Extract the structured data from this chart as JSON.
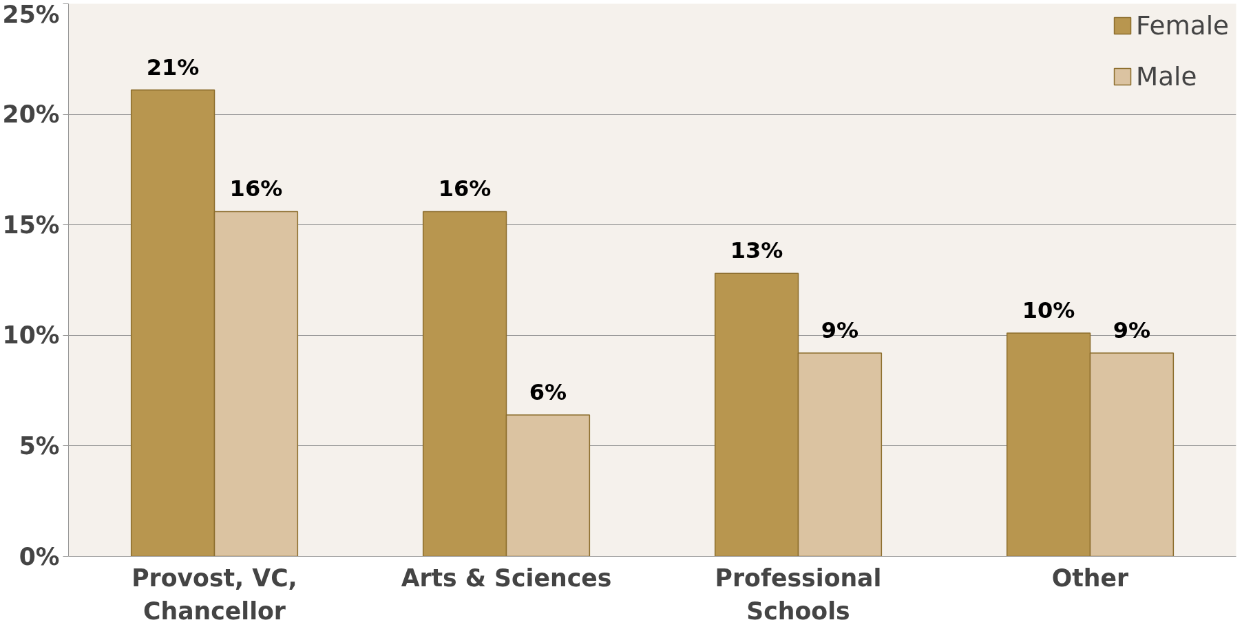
{
  "chart_data": {
    "type": "bar",
    "categories": [
      "Provost, VC,\nChancellor",
      "Arts & Sciences",
      "Professional\nSchools",
      "Other"
    ],
    "series": [
      {
        "name": "Female",
        "color": "#b8964f",
        "values": [
          21.1,
          15.6,
          12.8,
          10.1
        ],
        "value_labels": [
          "21%",
          "16%",
          "13%",
          "10%"
        ]
      },
      {
        "name": "Male",
        "color": "#dbc3a1",
        "values": [
          15.6,
          6.4,
          9.2,
          9.2
        ],
        "value_labels": [
          "16%",
          "6%",
          "9%",
          "9%"
        ]
      }
    ],
    "ylim": [
      0,
      25
    ],
    "yticks": [
      {
        "value": 0,
        "label": "0%"
      },
      {
        "value": 5,
        "label": "5%"
      },
      {
        "value": 10,
        "label": "10%"
      },
      {
        "value": 15,
        "label": "15%"
      },
      {
        "value": 20,
        "label": "20%"
      },
      {
        "value": 25,
        "label": "25%"
      }
    ],
    "grid": "y",
    "legend": "top right"
  }
}
